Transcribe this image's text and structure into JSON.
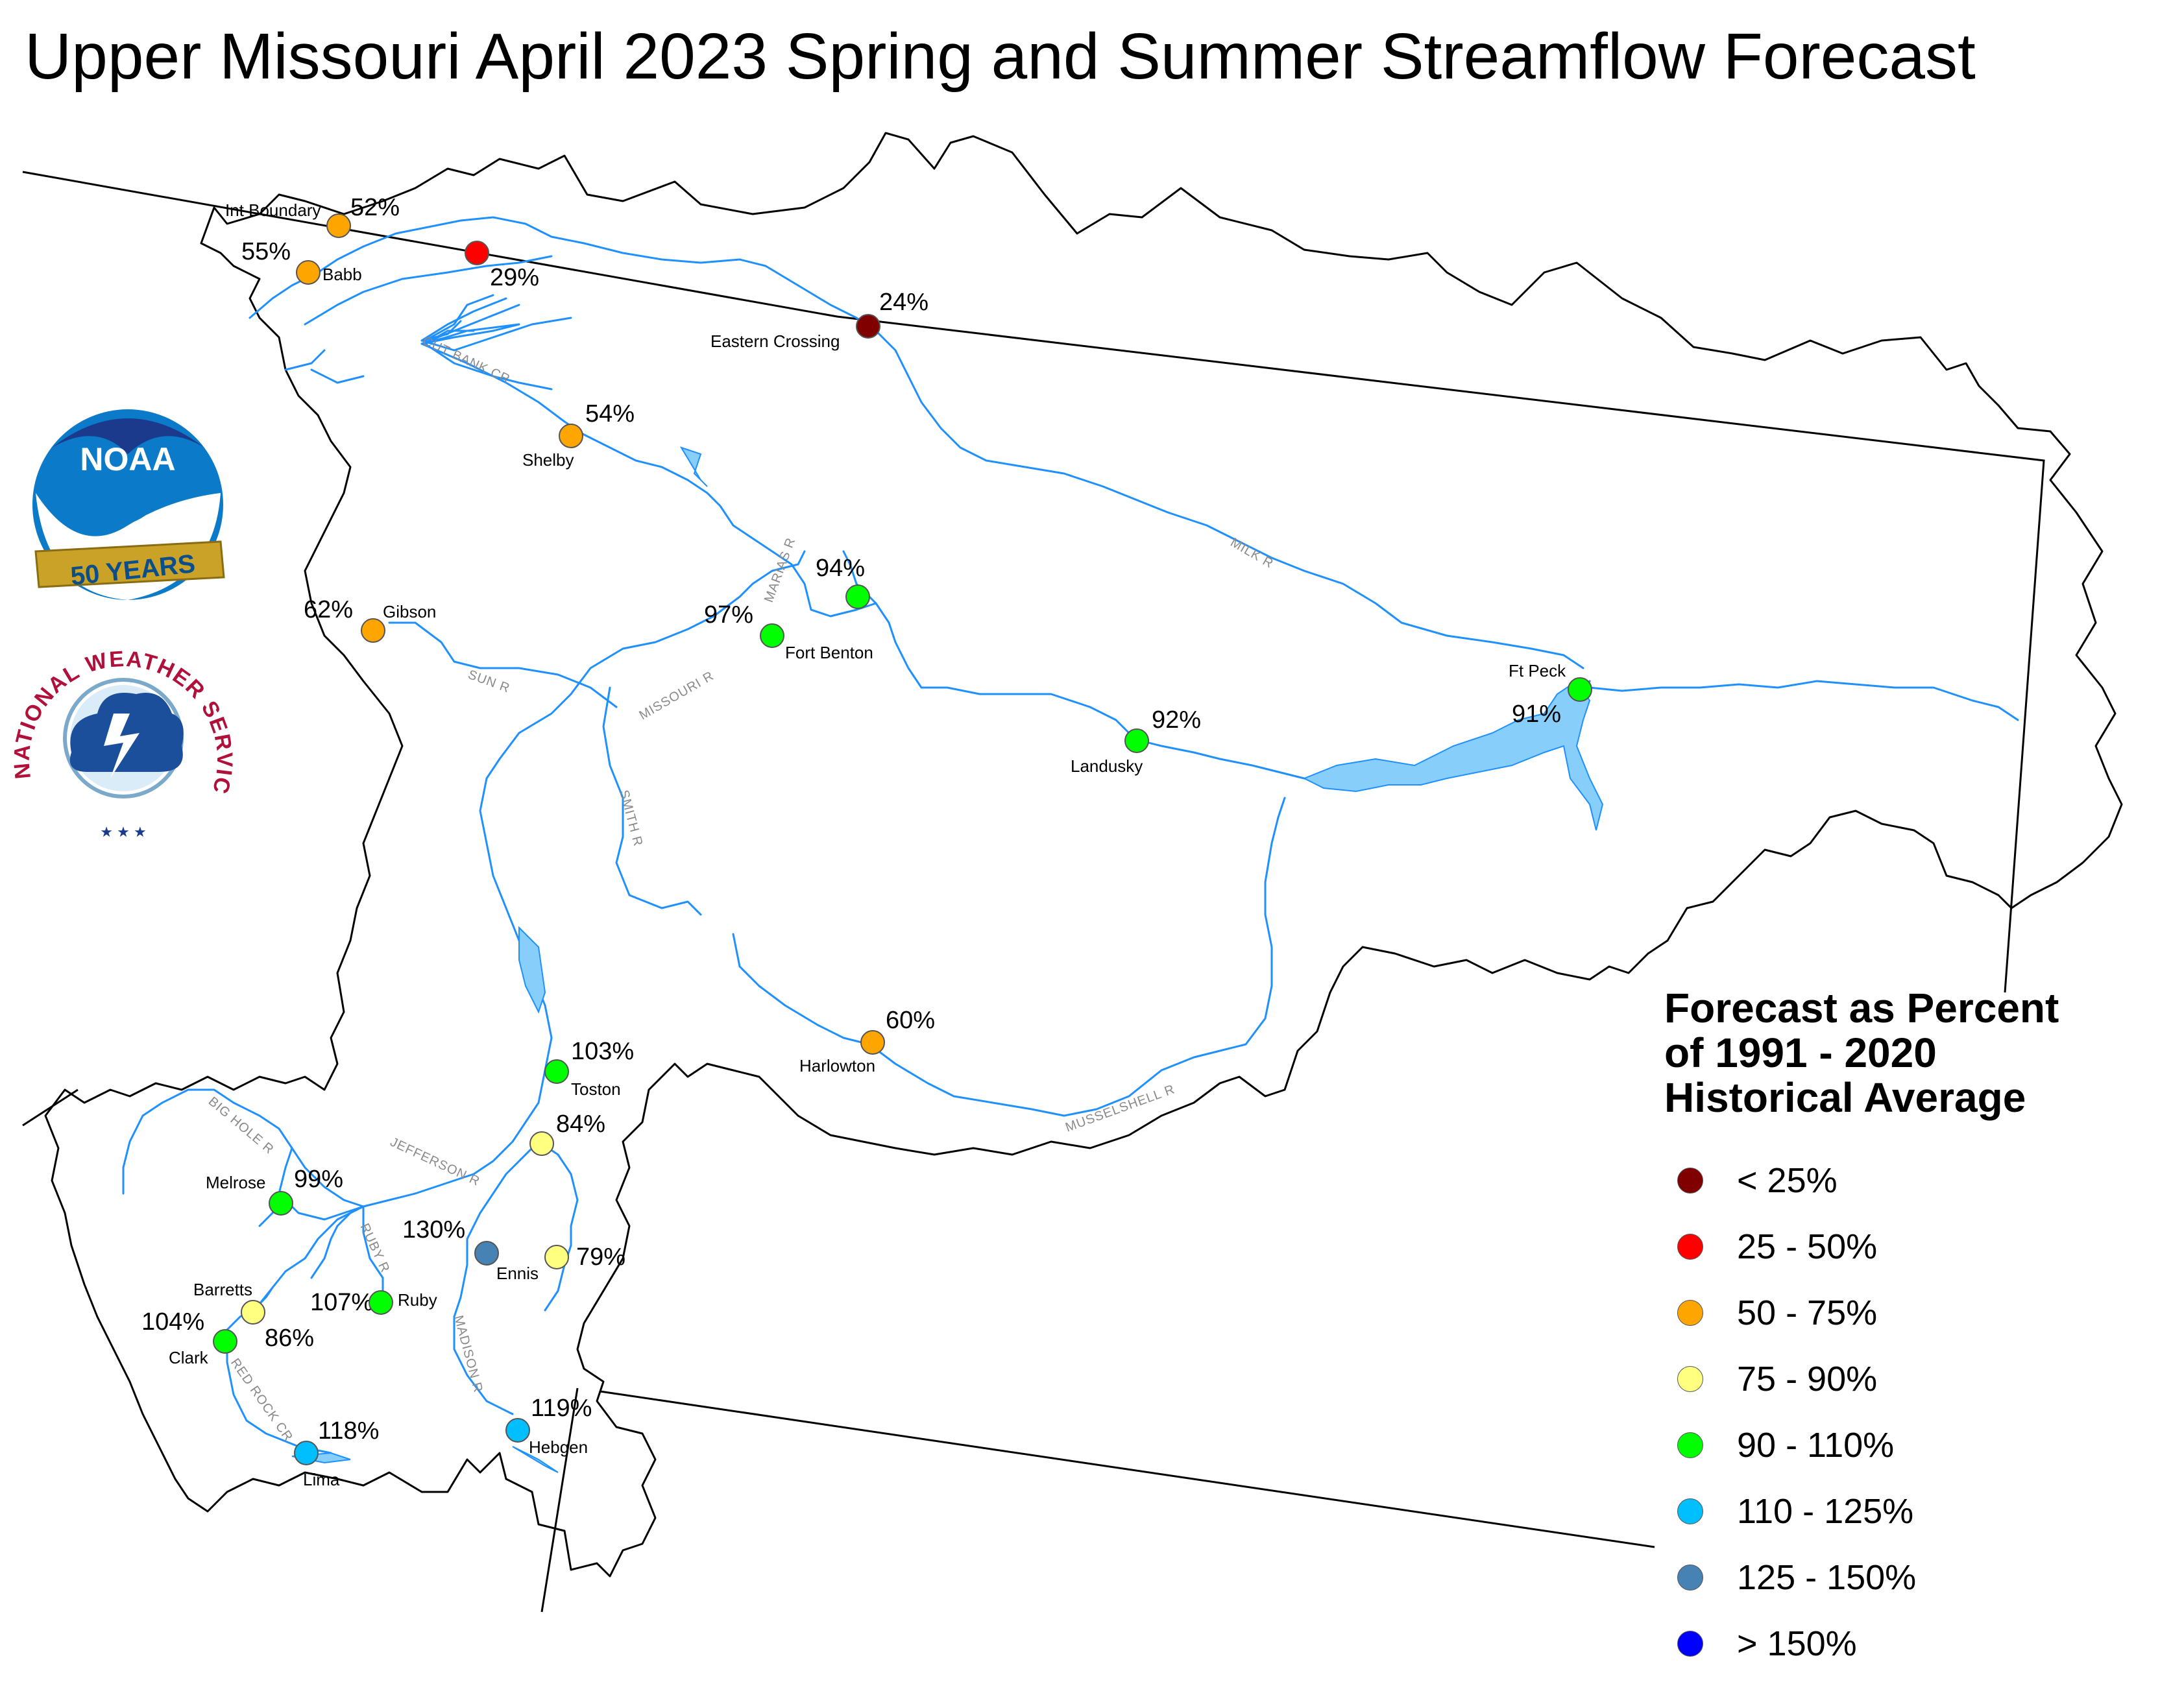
{
  "title": "Upper Missouri April 2023 Spring and Summer Streamflow Forecast",
  "legend": {
    "title_lines": [
      "Forecast as Percent",
      "of 1991 - 2020",
      "Historical Average"
    ],
    "items": [
      {
        "label": "< 25%",
        "color": "#800000"
      },
      {
        "label": "25 - 50%",
        "color": "#ff0000"
      },
      {
        "label": "50 - 75%",
        "color": "#ffa500"
      },
      {
        "label": "75 - 90%",
        "color": "#ffff80"
      },
      {
        "label": "90 - 110%",
        "color": "#00ff00"
      },
      {
        "label": "110 - 125%",
        "color": "#00bfff"
      },
      {
        "label": "125 - 150%",
        "color": "#4682b4"
      },
      {
        "label": "> 150%",
        "color": "#0000ff"
      }
    ]
  },
  "logos": {
    "noaa": {
      "text": "NOAA",
      "ribbon": "50 YEARS"
    },
    "nws": {
      "text": "NATIONAL WEATHER SERVICE"
    }
  },
  "gauges": [
    {
      "name": "Int Boundary",
      "pct": "52%",
      "color": "#ffa500"
    },
    {
      "name": "Babb",
      "pct": "55%",
      "color": "#ffa500"
    },
    {
      "name": "",
      "pct": "29%",
      "color": "#ff0000"
    },
    {
      "name": "Eastern Crossing",
      "pct": "24%",
      "color": "#800000"
    },
    {
      "name": "Shelby",
      "pct": "54%",
      "color": "#ffa500"
    },
    {
      "name": "",
      "pct": "94%",
      "color": "#00ff00"
    },
    {
      "name": "Fort Benton",
      "pct": "97%",
      "color": "#00ff00"
    },
    {
      "name": "Gibson",
      "pct": "62%",
      "color": "#ffa500"
    },
    {
      "name": "Landusky",
      "pct": "92%",
      "color": "#00ff00"
    },
    {
      "name": "Ft Peck",
      "pct": "91%",
      "color": "#00ff00"
    },
    {
      "name": "Harlowton",
      "pct": "60%",
      "color": "#ffa500"
    },
    {
      "name": "Toston",
      "pct": "103%",
      "color": "#00ff00"
    },
    {
      "name": "",
      "pct": "84%",
      "color": "#ffff80"
    },
    {
      "name": "Melrose",
      "pct": "99%",
      "color": "#00ff00"
    },
    {
      "name": "Ennis",
      "pct": "130%",
      "color": "#4682b4"
    },
    {
      "name": "",
      "pct": "79%",
      "color": "#ffff80"
    },
    {
      "name": "Ruby",
      "pct": "107%",
      "color": "#00ff00"
    },
    {
      "name": "Barretts",
      "pct": "86%",
      "color": "#ffff80"
    },
    {
      "name": "Clark",
      "pct": "104%",
      "color": "#00ff00"
    },
    {
      "name": "Lima",
      "pct": "118%",
      "color": "#00bfff"
    },
    {
      "name": "Hebgen",
      "pct": "119%",
      "color": "#00bfff"
    }
  ],
  "rivers": [
    "CUT BANK CR",
    "MARIAS R",
    "MILK R",
    "SUN R",
    "MISSOURI R",
    "SMITH R",
    "MUSSELSHELL R",
    "BIG HOLE R",
    "JEFFERSON R",
    "RUBY R",
    "MADISON R",
    "RED ROCK CR"
  ]
}
